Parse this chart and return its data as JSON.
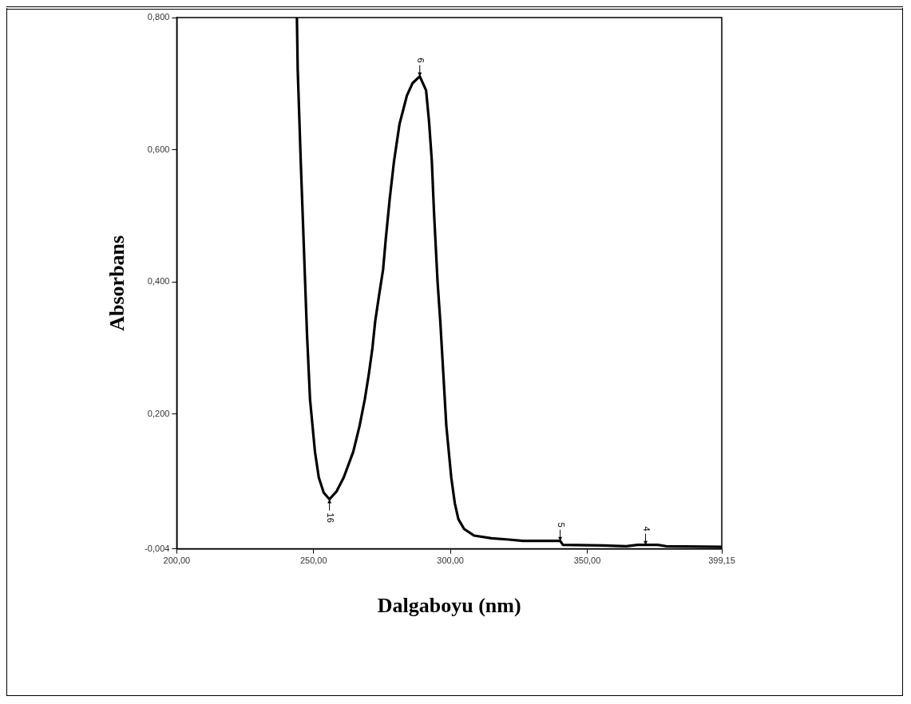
{
  "chart_data": {
    "type": "line",
    "xlabel": "Dalgaboyu (nm)",
    "ylabel": "Absorbans",
    "x": [
      243.9,
      244.2,
      245.3,
      246.9,
      247.6,
      248.7,
      250.5,
      251.9,
      253.7,
      255.8,
      258.4,
      261.0,
      264.5,
      266.8,
      268.7,
      270.2,
      271.5,
      272.5,
      273.9,
      275.4,
      276.4,
      277.8,
      279.4,
      281.4,
      284.1,
      286.2,
      288.8,
      291.1,
      292.2,
      293.2,
      294.0,
      295.3,
      296.3,
      297.4,
      298.5,
      300.3,
      301.6,
      302.9,
      305.0,
      308.7,
      315.0,
      321.3,
      326.5,
      340.1,
      341.1,
      355.8,
      364.2,
      368.4,
      371.3,
      375.7,
      378.8,
      399.15
    ],
    "series": [
      {
        "color": "#000000",
        "values": [
          0.8,
          0.721,
          0.583,
          0.4,
          0.32,
          0.222,
          0.143,
          0.104,
          0.081,
          0.071,
          0.083,
          0.104,
          0.143,
          0.182,
          0.222,
          0.261,
          0.3,
          0.34,
          0.379,
          0.419,
          0.466,
          0.525,
          0.583,
          0.639,
          0.682,
          0.701,
          0.711,
          0.69,
          0.642,
          0.583,
          0.505,
          0.4,
          0.34,
          0.261,
          0.182,
          0.104,
          0.065,
          0.041,
          0.026,
          0.016,
          0.012,
          0.01,
          0.008,
          0.008,
          0.002,
          0.001,
          0.0,
          0.002,
          0.002,
          0.002,
          0.0,
          -0.001
        ]
      }
    ],
    "xlim": [
      200,
      399.15
    ],
    "xticks": [
      {
        "value": 200,
        "label": "200,00"
      },
      {
        "value": 250,
        "label": "250,00"
      },
      {
        "value": 300,
        "label": "300,00"
      },
      {
        "value": 350,
        "label": "350,00"
      },
      {
        "value": 399.15,
        "label": "399,15"
      }
    ],
    "ylim": [
      -0.004,
      0.8
    ],
    "yticks": [
      {
        "value": -0.004,
        "label": "-0,004"
      },
      {
        "value": 0.2,
        "label": "0,200"
      },
      {
        "value": 0.4,
        "label": "0,400"
      },
      {
        "value": 0.6,
        "label": "0,600"
      },
      {
        "value": 0.8,
        "label": "0,800"
      }
    ],
    "annotations": [
      {
        "text": "6",
        "x": 288.8,
        "y": 0.711
      },
      {
        "text": "16",
        "x": 255.8,
        "y": 0.071
      },
      {
        "text": "5",
        "x": 340.1,
        "y": 0.008
      },
      {
        "text": "4",
        "x": 371.3,
        "y": 0.002
      }
    ],
    "grid": false,
    "legend": false,
    "marker": "none",
    "line_style": "solid"
  }
}
